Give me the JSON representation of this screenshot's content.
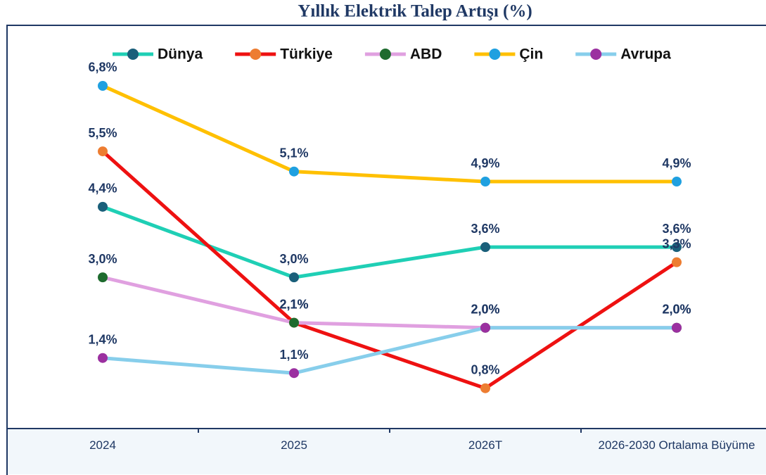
{
  "chart_data": {
    "type": "line",
    "title": "Yıllık Elektrik Talep Artışı (%)",
    "categories": [
      "2024",
      "2025",
      "2026T",
      "2026-2030 Ortalama Büyüme"
    ],
    "ylim": [
      0,
      8
    ],
    "series": [
      {
        "name": "Dünya",
        "color": "#1fcfb5",
        "marker_color": "#1a5f7a",
        "values": [
          4.4,
          3.0,
          3.6,
          3.6
        ],
        "value_labels": [
          "4,4%",
          "3,0%",
          "3,6%",
          "3,6%"
        ]
      },
      {
        "name": "Türkiye",
        "color": "#ee1111",
        "marker_color": "#ed7d31",
        "values": [
          5.5,
          2.1,
          0.8,
          3.3
        ],
        "value_labels": [
          "5,5%",
          "2,1%",
          "0,8%",
          "3,3%"
        ]
      },
      {
        "name": "ABD",
        "color": "#e0a0e0",
        "marker_color": "#1e6b2e",
        "values": [
          3.0,
          2.1,
          2.0,
          2.0
        ],
        "value_labels": [
          "3,0%",
          "2,1%",
          "2,0%",
          "2,0%"
        ]
      },
      {
        "name": "Çin",
        "color": "#ffc000",
        "marker_color": "#1fa0e0",
        "values": [
          6.8,
          5.1,
          4.9,
          4.9
        ],
        "value_labels": [
          "6,8%",
          "5,1%",
          "4,9%",
          "4,9%"
        ]
      },
      {
        "name": "Avrupa",
        "color": "#87ceeb",
        "marker_color": "#9b30a0",
        "values": [
          1.4,
          1.1,
          2.0,
          2.0
        ],
        "value_labels": [
          "1,4%",
          "1,1%",
          "2,0%",
          "2,0%"
        ]
      }
    ]
  }
}
